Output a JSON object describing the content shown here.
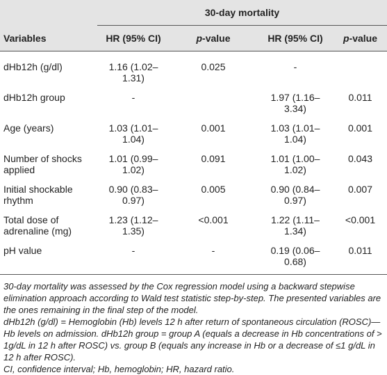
{
  "table": {
    "group_header": "30-day mortality",
    "columns": [
      "Variables",
      "HR (95% CI)",
      [
        "p",
        "-value"
      ],
      "HR (95% CI)",
      [
        "p",
        "-value"
      ]
    ],
    "rows": [
      [
        "dHb12h (g/dl)",
        "1.16 (1.02–1.31)",
        "0.025",
        "-",
        ""
      ],
      [
        "dHb12h group",
        "-",
        "",
        "1.97 (1.16–3.34)",
        "0.011"
      ],
      [
        "Age (years)",
        "1.03 (1.01–1.04)",
        "0.001",
        "1.03 (1.01–1.04)",
        "0.001"
      ],
      [
        "Number of shocks applied",
        "1.01 (0.99–1.02)",
        "0.091",
        "1.01 (1.00–1.02)",
        "0.043"
      ],
      [
        "Initial shockable rhythm",
        "0.90 (0.83–0.97)",
        "0.005",
        "0.90 (0.84–0.97)",
        "0.007"
      ],
      [
        "Total dose of adrenaline (mg)",
        "1.23 (1.12–1.35)",
        "<0.001",
        "1.22 (1.11–1.34)",
        "<0.001"
      ],
      [
        "pH value",
        "-",
        "-",
        "0.19 (0.06–0.68)",
        "0.011"
      ]
    ]
  },
  "notes": [
    "30-day mortality was assessed by the Cox regression model using a backward stepwise elimination approach according to Wald test statistic step-by-step. The presented variables are the ones remaining in the final step of the model.",
    "dHb12h (g/dl) = Hemoglobin (Hb) levels 12 h after return of spontaneous circulation (ROSC)—Hb levels on admission. dHb12h group = group A (equals a decrease in Hb concentrations of > 1g/dL in 12 h after ROSC) vs. group B (equals any increase in Hb or a decrease of ≤1 g/dL in 12 h after ROSC).",
    "CI, confidence interval; Hb, hemoglobin; HR, hazard ratio."
  ]
}
